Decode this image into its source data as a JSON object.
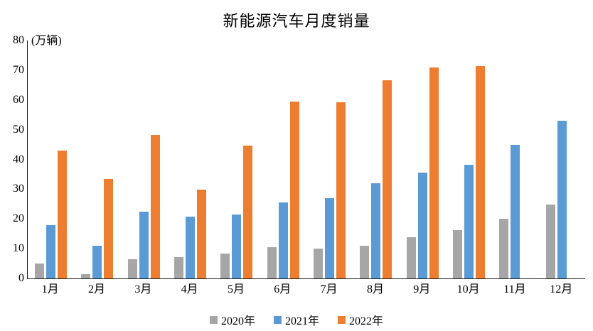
{
  "title": "新能源汽车月度销量",
  "chart_data": {
    "type": "bar",
    "title": "新能源汽车月度销量",
    "unit_label": "(万辆)",
    "xlabel": "",
    "ylabel": "万辆",
    "ylim": [
      0,
      80
    ],
    "ytick_step": 10,
    "grid": false,
    "legend_position": "bottom",
    "categories": [
      "1月",
      "2月",
      "3月",
      "4月",
      "5月",
      "6月",
      "7月",
      "8月",
      "9月",
      "10月",
      "11月",
      "12月"
    ],
    "series": [
      {
        "name": "2020年",
        "color": "#A6A6A6",
        "values": [
          5.0,
          1.5,
          6.5,
          7.2,
          8.3,
          10.5,
          10.0,
          10.9,
          13.9,
          16.2,
          20.0,
          24.8
        ]
      },
      {
        "name": "2021年",
        "color": "#5B9BD5",
        "values": [
          17.8,
          11.1,
          22.5,
          20.7,
          21.6,
          25.5,
          27.0,
          32.0,
          35.5,
          38.2,
          45.0,
          53.0
        ]
      },
      {
        "name": "2022年",
        "color": "#ED7D31",
        "values": [
          43.1,
          33.4,
          48.3,
          29.9,
          44.7,
          59.5,
          59.3,
          66.6,
          70.9,
          71.4,
          null,
          null
        ]
      }
    ]
  }
}
